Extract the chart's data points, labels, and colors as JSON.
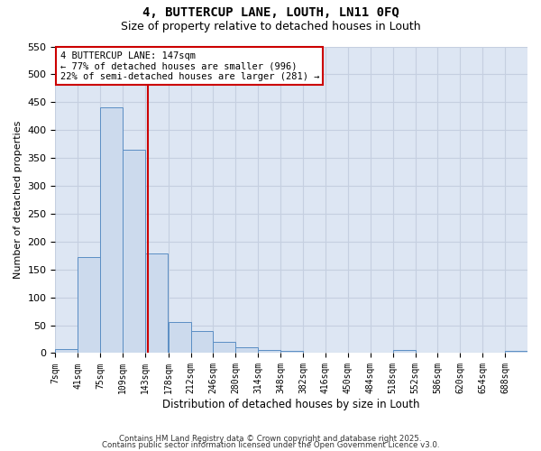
{
  "title": "4, BUTTERCUP LANE, LOUTH, LN11 0FQ",
  "subtitle": "Size of property relative to detached houses in Louth",
  "xlabel": "Distribution of detached houses by size in Louth",
  "ylabel": "Number of detached properties",
  "bin_labels": [
    "7sqm",
    "41sqm",
    "75sqm",
    "109sqm",
    "143sqm",
    "178sqm",
    "212sqm",
    "246sqm",
    "280sqm",
    "314sqm",
    "348sqm",
    "382sqm",
    "416sqm",
    "450sqm",
    "484sqm",
    "518sqm",
    "552sqm",
    "586sqm",
    "620sqm",
    "654sqm",
    "688sqm"
  ],
  "bin_left_edges": [
    7,
    41,
    75,
    109,
    143,
    178,
    212,
    246,
    280,
    314,
    348,
    382,
    416,
    450,
    484,
    518,
    552,
    586,
    620,
    654,
    688
  ],
  "bar_heights": [
    8,
    172,
    440,
    365,
    178,
    55,
    40,
    20,
    10,
    6,
    4,
    0,
    0,
    0,
    0,
    5,
    0,
    0,
    0,
    0,
    4
  ],
  "bar_color": "#ccdaed",
  "bar_edge_color": "#5b8ec4",
  "grid_color": "#c5cfe0",
  "background_color": "#dde6f3",
  "red_line_x": 147,
  "annotation_line1": "4 BUTTERCUP LANE: 147sqm",
  "annotation_line2": "← 77% of detached houses are smaller (996)",
  "annotation_line3": "22% of semi-detached houses are larger (281) →",
  "annotation_box_color": "#cc0000",
  "ylim": [
    0,
    550
  ],
  "yticks": [
    0,
    50,
    100,
    150,
    200,
    250,
    300,
    350,
    400,
    450,
    500,
    550
  ],
  "footer1": "Contains HM Land Registry data © Crown copyright and database right 2025.",
  "footer2": "Contains public sector information licensed under the Open Government Licence v3.0.",
  "title_fontsize": 10,
  "subtitle_fontsize": 9
}
